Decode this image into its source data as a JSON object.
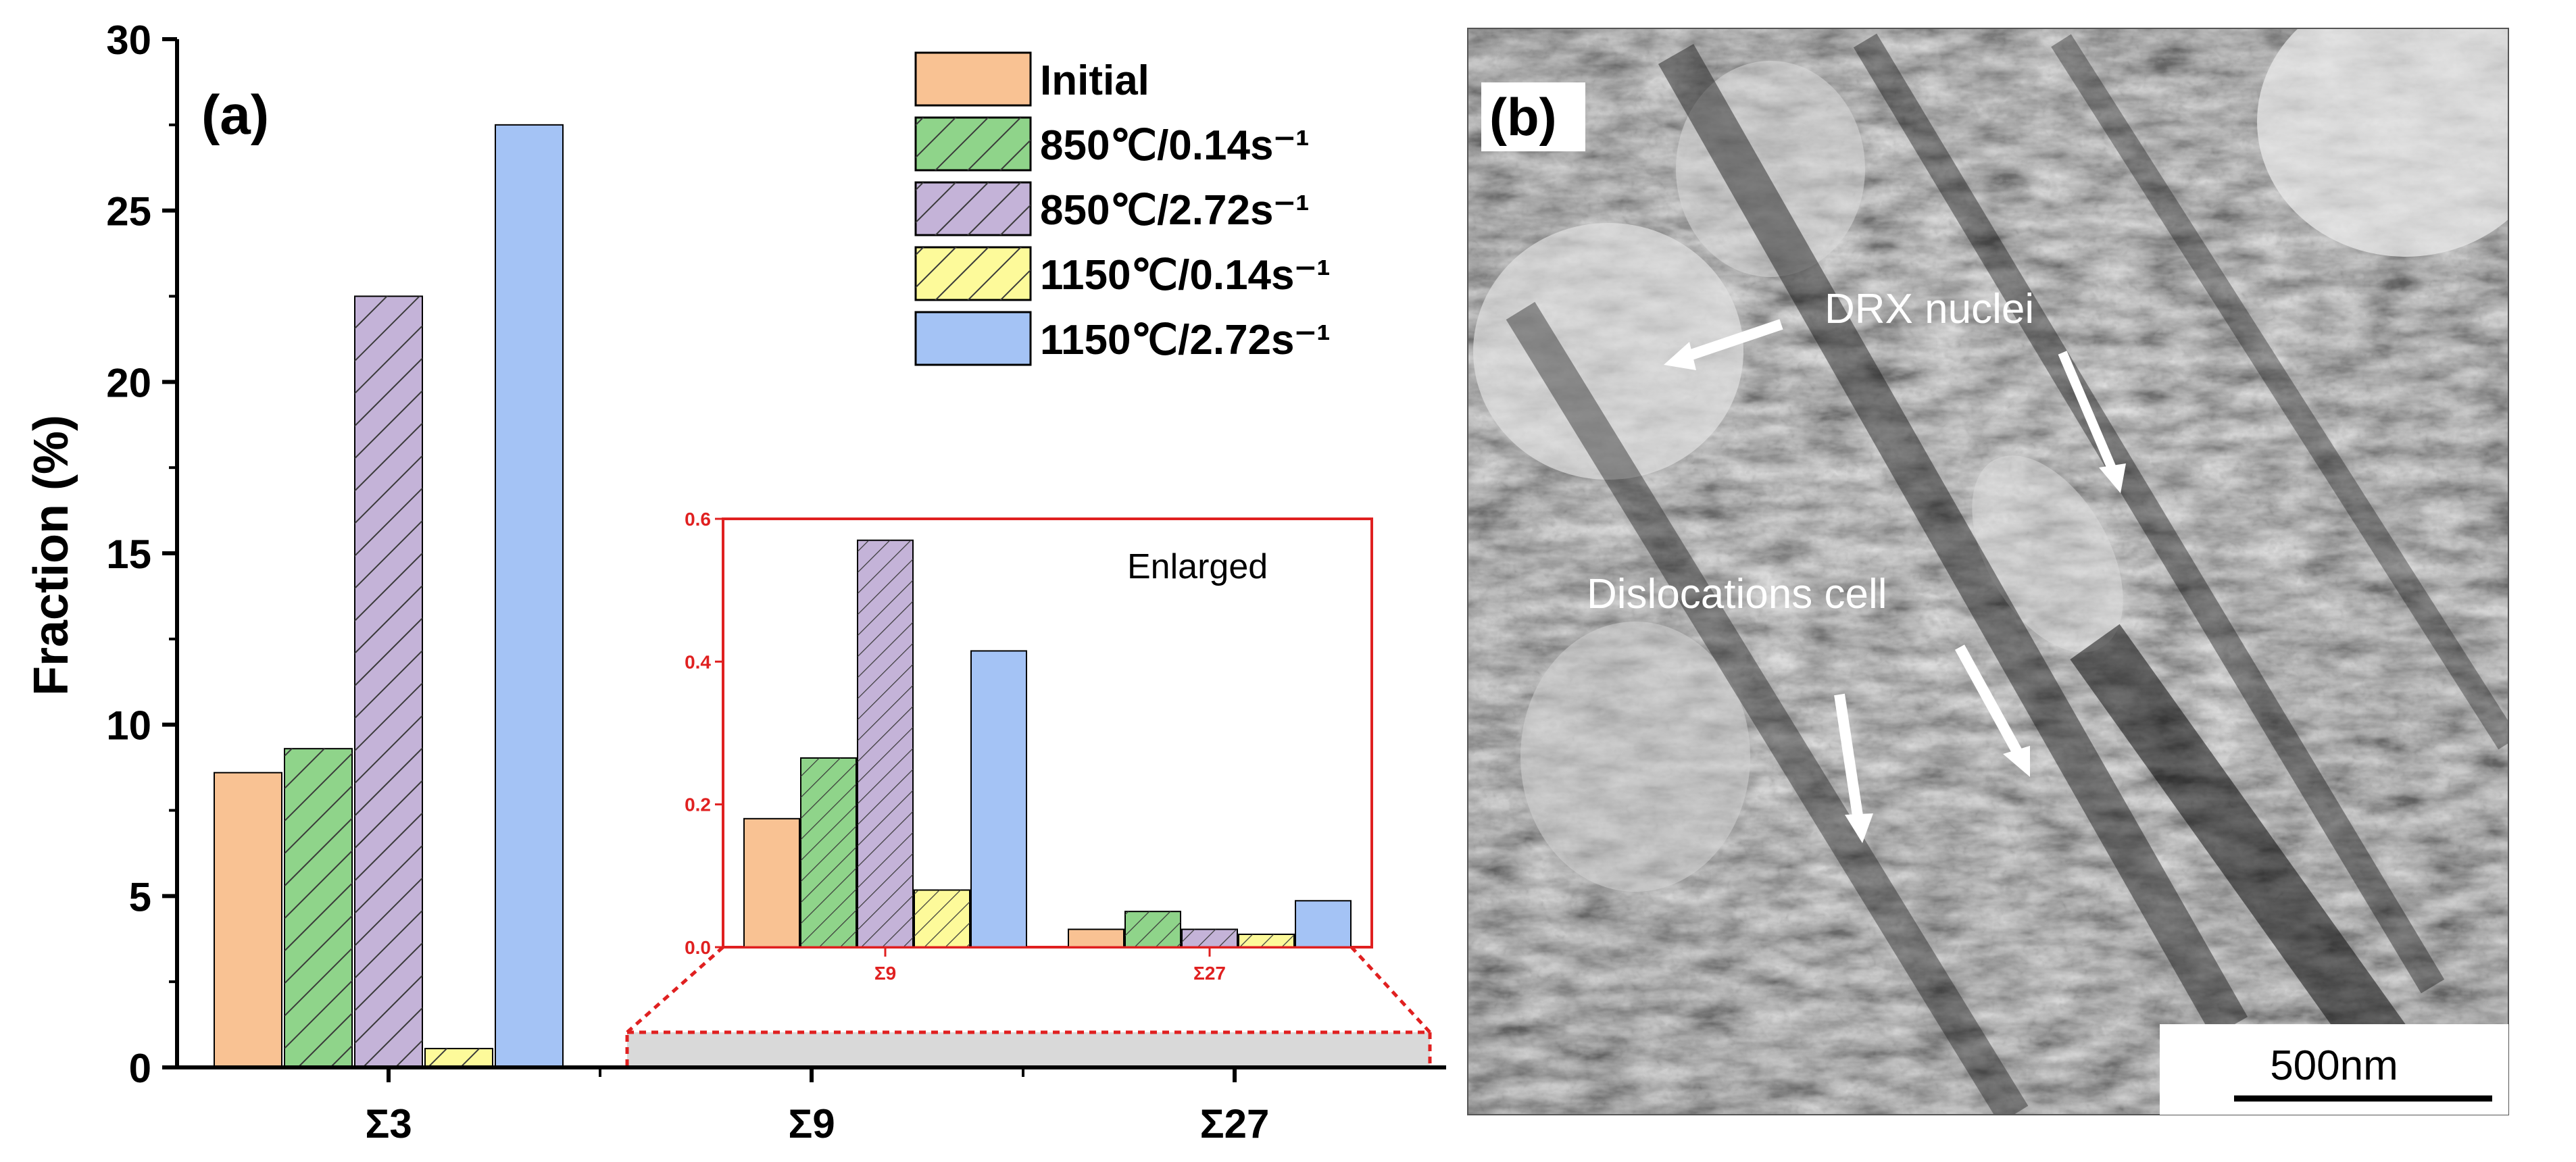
{
  "panel_a": {
    "label": "(a)",
    "ylabel": "Fraction (%)",
    "inset_label": "Enlarged"
  },
  "panel_b": {
    "label": "(b)",
    "annotations": [
      "DRX nuclei",
      "Dislocations cell"
    ],
    "scale_bar": "500nm"
  },
  "colors": {
    "Initial": "#f9c293",
    "850_014": "#8fd48a",
    "850_272": "#c4b3d8",
    "1150_014": "#fdfa9a",
    "1150_272": "#a4c3f5",
    "inset_frame": "#e02020",
    "zoom_band": "#d9d9d9"
  },
  "chart_data": [
    {
      "type": "bar",
      "categories": [
        "Σ3",
        "Σ9",
        "Σ27"
      ],
      "series": [
        {
          "name": "Initial",
          "values": [
            8.6,
            0.18,
            0.025
          ],
          "hatch": false,
          "color_key": "Initial"
        },
        {
          "name": "850℃/0.14s⁻¹",
          "values": [
            9.3,
            0.265,
            0.05
          ],
          "hatch": true,
          "color_key": "850_014"
        },
        {
          "name": "850℃/2.72s⁻¹",
          "values": [
            22.5,
            0.57,
            0.025
          ],
          "hatch": true,
          "color_key": "850_272"
        },
        {
          "name": "1150℃/0.14s⁻¹",
          "values": [
            0.55,
            0.08,
            0.018
          ],
          "hatch": true,
          "color_key": "1150_014"
        },
        {
          "name": "1150℃/2.72s⁻¹",
          "values": [
            27.5,
            0.415,
            0.065
          ],
          "hatch": false,
          "color_key": "1150_272"
        }
      ],
      "ylabel": "Fraction (%)",
      "ylim": [
        0,
        30
      ],
      "yticks": [
        "0",
        "5",
        "10",
        "15",
        "20",
        "25",
        "30"
      ],
      "legend": "top-right",
      "grid": false
    },
    {
      "type": "bar",
      "categories": [
        "Σ9",
        "Σ27"
      ],
      "series_ref": "same five series as main chart",
      "ylim": [
        0,
        0.6
      ],
      "yticks": [
        "0.0",
        "0.2",
        "0.4",
        "0.6"
      ],
      "label": "Enlarged"
    }
  ]
}
